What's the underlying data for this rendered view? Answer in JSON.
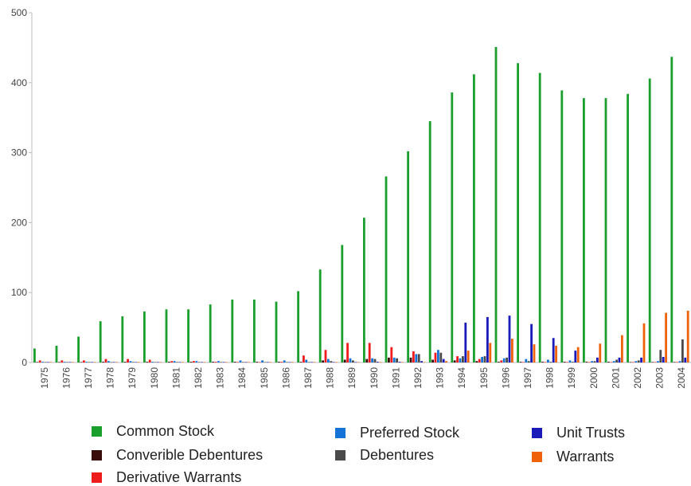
{
  "chart_data": {
    "type": "bar",
    "title": "",
    "xlabel": "",
    "ylabel": "",
    "ylim": [
      0,
      500
    ],
    "yticks": [
      0,
      100,
      200,
      300,
      400,
      500
    ],
    "grid": false,
    "legend_position": "bottom",
    "categories": [
      "1975",
      "1976",
      "1977",
      "1978",
      "1979",
      "1980",
      "1981",
      "1982",
      "1983",
      "1984",
      "1985",
      "1986",
      "1987",
      "1988",
      "1989",
      "1990",
      "1991",
      "1992",
      "1993",
      "1994",
      "1995",
      "1996",
      "1997",
      "1998",
      "1999",
      "2000",
      "2001",
      "2002",
      "2003",
      "2004"
    ],
    "series": [
      {
        "name": "Common Stock",
        "color": "#1a9e2c",
        "values": [
          20,
          24,
          37,
          59,
          66,
          73,
          76,
          76,
          83,
          90,
          90,
          87,
          102,
          133,
          168,
          207,
          266,
          302,
          345,
          386,
          412,
          451,
          428,
          414,
          389,
          378,
          378,
          384,
          406,
          437
        ]
      },
      {
        "name": "Converible Debentures",
        "color": "#3a0d0d",
        "values": [
          0,
          0,
          0,
          1,
          1,
          1,
          1,
          1,
          1,
          1,
          1,
          1,
          1,
          3,
          4,
          5,
          7,
          7,
          4,
          3,
          2,
          1,
          1,
          1,
          1,
          1,
          1,
          0,
          0,
          0
        ]
      },
      {
        "name": "Derivative Warrants",
        "color": "#ee1c1c",
        "values": [
          3,
          3,
          3,
          5,
          5,
          4,
          2,
          2,
          1,
          0,
          0,
          1,
          10,
          18,
          28,
          28,
          22,
          16,
          14,
          9,
          5,
          3,
          0,
          0,
          0,
          0,
          0,
          0,
          0,
          0
        ]
      },
      {
        "name": "Preferred Stock",
        "color": "#1473d6",
        "values": [
          1,
          1,
          1,
          2,
          2,
          1,
          2,
          2,
          2,
          3,
          3,
          3,
          4,
          5,
          6,
          6,
          7,
          12,
          18,
          6,
          8,
          6,
          5,
          4,
          3,
          2,
          2,
          2,
          2,
          2
        ]
      },
      {
        "name": "Debentures",
        "color": "#4a4a4a",
        "values": [
          0,
          0,
          0,
          0,
          0,
          0,
          0,
          0,
          0,
          0,
          0,
          0,
          0,
          2,
          3,
          5,
          6,
          12,
          14,
          9,
          9,
          7,
          2,
          1,
          1,
          2,
          4,
          3,
          18,
          33
        ]
      },
      {
        "name": "Unit Trusts",
        "color": "#1a1ab8",
        "values": [
          0,
          0,
          0,
          0,
          0,
          0,
          0,
          0,
          0,
          0,
          0,
          0,
          0,
          0,
          0,
          1,
          1,
          2,
          5,
          57,
          65,
          67,
          55,
          35,
          17,
          7,
          7,
          7,
          8,
          7
        ]
      },
      {
        "name": "Warrants",
        "color": "#f0620a",
        "values": [
          0,
          0,
          0,
          0,
          0,
          0,
          0,
          0,
          0,
          0,
          0,
          0,
          0,
          0,
          0,
          0,
          0,
          0,
          2,
          17,
          28,
          34,
          26,
          24,
          22,
          27,
          39,
          56,
          71,
          74
        ]
      }
    ]
  }
}
